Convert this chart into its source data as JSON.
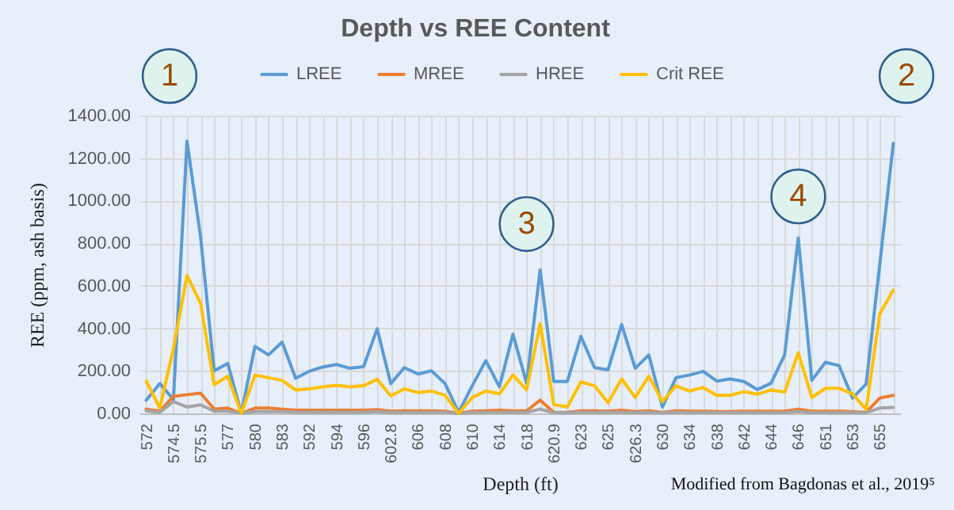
{
  "chart_data": {
    "type": "line",
    "title": "Depth vs REE Content",
    "xlabel": "Depth (ft)",
    "ylabel": "REE (ppm, ash basis)",
    "categories": [
      "572",
      null,
      "574.5",
      null,
      "575.5",
      null,
      "577",
      null,
      "580",
      null,
      "583",
      null,
      "592",
      null,
      "594",
      null,
      "596",
      null,
      "602.8",
      null,
      "606",
      null,
      "608",
      null,
      "610",
      null,
      "614",
      null,
      "618",
      null,
      "620.9",
      null,
      "623",
      null,
      "625",
      null,
      "626.3",
      null,
      "630",
      null,
      "634",
      null,
      "638",
      null,
      "642",
      null,
      "644",
      null,
      "646",
      null,
      "651",
      null,
      "653",
      null,
      "655",
      null
    ],
    "series": [
      {
        "name": "LREE",
        "color": "#5b9bd5",
        "values": [
          62,
          140,
          65,
          1280,
          830,
          200,
          235,
          0,
          315,
          275,
          335,
          165,
          198,
          218,
          230,
          212,
          220,
          398,
          140,
          215,
          185,
          200,
          140,
          5,
          130,
          248,
          125,
          372,
          142,
          675,
          150,
          150,
          362,
          215,
          205,
          418,
          212,
          275,
          30,
          168,
          180,
          198,
          152,
          162,
          150,
          112,
          142,
          275,
          825,
          155,
          240,
          225,
          72,
          138,
          700,
          1270
        ]
      },
      {
        "name": "MREE",
        "color": "#ed7d31",
        "values": [
          20,
          10,
          80,
          88,
          95,
          20,
          25,
          0,
          25,
          25,
          20,
          15,
          15,
          15,
          15,
          15,
          15,
          18,
          10,
          12,
          12,
          12,
          10,
          0,
          10,
          12,
          15,
          12,
          12,
          62,
          5,
          5,
          12,
          12,
          10,
          15,
          8,
          12,
          5,
          12,
          10,
          10,
          8,
          8,
          10,
          10,
          10,
          10,
          20,
          10,
          10,
          10,
          8,
          5,
          72,
          85
        ]
      },
      {
        "name": "HREE",
        "color": "#a5a5a5",
        "values": [
          12,
          5,
          55,
          30,
          40,
          10,
          10,
          0,
          8,
          8,
          8,
          6,
          6,
          6,
          6,
          6,
          6,
          8,
          5,
          5,
          5,
          5,
          5,
          0,
          4,
          5,
          5,
          5,
          5,
          20,
          3,
          3,
          5,
          5,
          5,
          5,
          4,
          5,
          3,
          5,
          4,
          4,
          4,
          4,
          4,
          4,
          4,
          4,
          8,
          4,
          4,
          4,
          4,
          3,
          25,
          28
        ]
      },
      {
        "name": "Crit REE",
        "color": "#ffc000",
        "values": [
          152,
          25,
          305,
          648,
          518,
          135,
          175,
          0,
          180,
          168,
          155,
          110,
          115,
          125,
          132,
          125,
          130,
          160,
          82,
          115,
          98,
          105,
          85,
          0,
          75,
          105,
          92,
          180,
          110,
          422,
          42,
          30,
          148,
          130,
          50,
          162,
          75,
          175,
          55,
          130,
          105,
          122,
          85,
          85,
          102,
          90,
          110,
          100,
          285,
          75,
          118,
          118,
          92,
          18,
          468,
          580
        ]
      }
    ],
    "ylim": [
      0,
      1400
    ],
    "yticks": [
      {
        "value": 0,
        "label": "0.00"
      },
      {
        "value": 200,
        "label": "200.00"
      },
      {
        "value": 400,
        "label": "400.00"
      },
      {
        "value": 600,
        "label": "600.00"
      },
      {
        "value": 800,
        "label": "800.00"
      },
      {
        "value": 1000,
        "label": "1000.00"
      },
      {
        "value": 1200,
        "label": "1200.00"
      },
      {
        "value": 1400,
        "label": "1400.00"
      }
    ],
    "grid": true,
    "legend": "top",
    "annotations": [
      "1",
      {
        "text": "3",
        "x": "618",
        "y": 890
      },
      {
        "text": "4",
        "x": "646",
        "y": 1020
      },
      "2",
      "Modified from Bagdonas et al., 2019⁵"
    ]
  }
}
